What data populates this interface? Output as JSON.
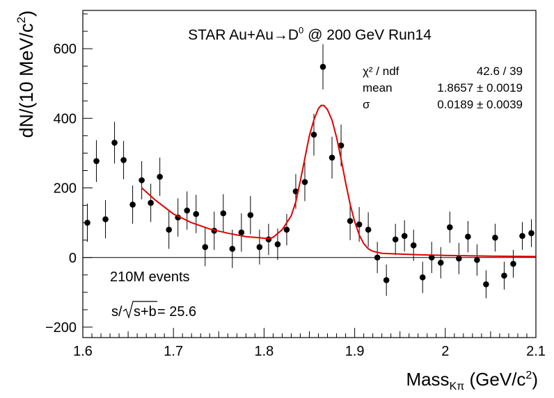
{
  "chart_data": {
    "type": "scatter",
    "title": "STAR Au+Au→D⁰ @ 200 GeV Run14",
    "title_parts": {
      "pre": "STAR Au+Au→D",
      "sup": "0",
      "post": " @ 200 GeV Run14"
    },
    "xlabel": "Mass(Kπ) (GeV/c²)",
    "xlabel_parts": {
      "main": "Mass",
      "sub": "Kπ",
      "unit_pre": " (GeV/c",
      "unit_sup": "2",
      "unit_post": ")"
    },
    "ylabel": "dN/(10 MeV/c²)",
    "ylabel_parts": {
      "pre": "dN/(10 MeV/c",
      "sup": "2",
      "post": ")"
    },
    "xlim": [
      1.6,
      2.1
    ],
    "ylim": [
      -230,
      710
    ],
    "x_ticks": [
      1.6,
      1.7,
      1.8,
      1.9,
      2.0,
      2.1
    ],
    "x_tick_labels": [
      "1.6",
      "1.7",
      "1.8",
      "1.9",
      "2",
      "2.1"
    ],
    "y_ticks": [
      -200,
      0,
      200,
      400,
      600
    ],
    "y_tick_labels": [
      "−200",
      "0",
      "200",
      "400",
      "600"
    ],
    "grid": false,
    "zero_line": true,
    "stats": [
      {
        "label": "χ² / ndf",
        "value": "42.6 / 39"
      },
      {
        "label": "mean",
        "value": "1.8657 ± 0.0019"
      },
      {
        "label": "σ",
        "value": "0.0189 ± 0.0039"
      }
    ],
    "annotations": {
      "events": "210M events",
      "significance_pre": "s/",
      "significance_root": "s+b",
      "significance_post": " = 25.6"
    },
    "series": [
      {
        "type": "errorbar",
        "color": "#000000",
        "x": [
          1.605,
          1.615,
          1.625,
          1.635,
          1.645,
          1.655,
          1.665,
          1.675,
          1.685,
          1.695,
          1.705,
          1.715,
          1.725,
          1.735,
          1.745,
          1.755,
          1.765,
          1.775,
          1.785,
          1.795,
          1.805,
          1.815,
          1.825,
          1.835,
          1.845,
          1.855,
          1.865,
          1.875,
          1.885,
          1.895,
          1.905,
          1.915,
          1.925,
          1.935,
          1.945,
          1.955,
          1.965,
          1.975,
          1.985,
          1.995,
          2.005,
          2.015,
          2.025,
          2.035,
          2.045,
          2.055,
          2.065,
          2.075,
          2.085,
          2.095
        ],
        "y": [
          100,
          277,
          110,
          330,
          280,
          152,
          222,
          157,
          232,
          80,
          115,
          135,
          125,
          30,
          77,
          127,
          25,
          72,
          122,
          30,
          52,
          38,
          80,
          190,
          217,
          353,
          548,
          287,
          322,
          105,
          95,
          80,
          0,
          -65,
          52,
          62,
          35,
          -57,
          0,
          -15,
          87,
          -3,
          60,
          -7,
          -77,
          57,
          -52,
          -18,
          62,
          70
        ],
        "err": [
          55,
          60,
          55,
          60,
          55,
          55,
          55,
          55,
          55,
          55,
          55,
          55,
          55,
          55,
          55,
          55,
          55,
          55,
          55,
          50,
          45,
          45,
          45,
          50,
          55,
          60,
          65,
          60,
          60,
          55,
          50,
          50,
          45,
          45,
          45,
          45,
          45,
          45,
          45,
          45,
          45,
          45,
          45,
          45,
          40,
          40,
          40,
          40,
          40,
          40
        ]
      },
      {
        "type": "fit",
        "color": "#e00000",
        "x": [
          1.665,
          1.68,
          1.7,
          1.72,
          1.74,
          1.76,
          1.78,
          1.795,
          1.805,
          1.81,
          1.82,
          1.83,
          1.835,
          1.84,
          1.845,
          1.85,
          1.855,
          1.86,
          1.863,
          1.866,
          1.87,
          1.875,
          1.88,
          1.885,
          1.89,
          1.895,
          1.9,
          1.905,
          1.91,
          1.915,
          1.92,
          1.93,
          1.95,
          1.97,
          2.0,
          2.05,
          2.1
        ],
        "y": [
          200,
          165,
          125,
          100,
          82,
          70,
          60,
          57,
          54,
          58,
          80,
          120,
          160,
          220,
          285,
          350,
          395,
          428,
          437,
          437,
          425,
          395,
          345,
          283,
          215,
          153,
          103,
          65,
          40,
          25,
          18,
          12,
          10,
          8,
          6,
          4,
          3
        ]
      }
    ]
  }
}
